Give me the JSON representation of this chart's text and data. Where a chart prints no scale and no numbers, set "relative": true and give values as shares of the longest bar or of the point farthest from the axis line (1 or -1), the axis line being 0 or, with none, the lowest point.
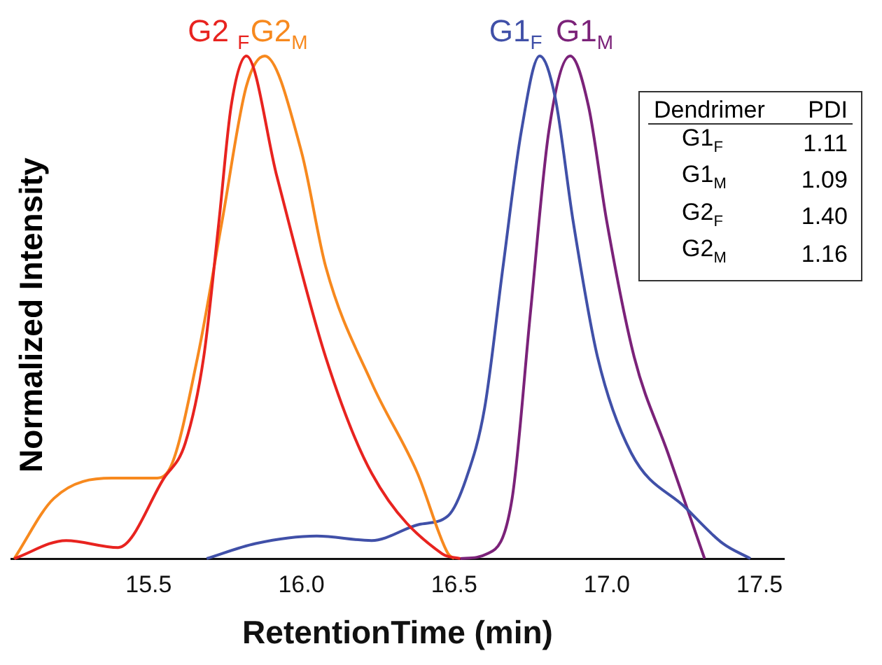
{
  "chart_data": {
    "type": "line",
    "relative": true,
    "xlabel": "RetentionTime (min)",
    "ylabel": "Normalized Intensity",
    "xlim": [
      15.05,
      17.58
    ],
    "xticks": [
      {
        "value": 15.5,
        "label": "15.5"
      },
      {
        "value": 16,
        "label": "16.0"
      },
      {
        "value": 16.5,
        "label": "16.5"
      },
      {
        "value": 17,
        "label": "17.0"
      },
      {
        "value": 17.5,
        "label": "17.5"
      }
    ],
    "grid": false,
    "legend": false,
    "tick_labels": "x",
    "marker": "none",
    "line_style": "solid",
    "series": [
      {
        "name": "G2 $_{F}$",
        "color": "#e8231f",
        "x": [
          15.06,
          15.23,
          15.4,
          15.55,
          15.62,
          15.68,
          15.73,
          15.77,
          15.82,
          15.92,
          16.08,
          16.23,
          16.46,
          16.52
        ],
        "values": [
          0,
          0.036,
          0.022,
          0.16,
          0.23,
          0.4,
          0.67,
          0.9,
          1,
          0.76,
          0.4,
          0.17,
          0.01,
          0
        ]
      },
      {
        "name": "G2$_{M}$",
        "color": "#f7891e",
        "x": [
          15.06,
          15.19,
          15.38,
          15.52,
          15.57,
          15.66,
          15.74,
          15.82,
          15.88,
          16.0,
          16.08,
          16.23,
          16.38,
          16.48,
          16.5
        ],
        "values": [
          0,
          0.12,
          0.16,
          0.16,
          0.18,
          0.4,
          0.67,
          0.94,
          1,
          0.81,
          0.58,
          0.35,
          0.17,
          0.01,
          0
        ]
      },
      {
        "name": "G1$_{F}$",
        "color": "#4050a8",
        "x": [
          15.69,
          15.85,
          16.05,
          16.23,
          16.385,
          16.48,
          16.54,
          16.6,
          16.66,
          16.72,
          16.78,
          16.83,
          16.89,
          16.97,
          17.08,
          17.26,
          17.38,
          17.47
        ],
        "values": [
          0,
          0.03,
          0.045,
          0.036,
          0.068,
          0.085,
          0.16,
          0.3,
          0.58,
          0.85,
          1,
          0.92,
          0.67,
          0.4,
          0.21,
          0.1,
          0.03,
          0
        ]
      },
      {
        "name": "G1$_{M}$",
        "color": "#7b2279",
        "x": [
          16.52,
          16.61,
          16.69,
          16.75,
          16.81,
          16.88,
          16.94,
          17.0,
          17.09,
          17.2,
          17.32
        ],
        "values": [
          0,
          0.01,
          0.12,
          0.49,
          0.85,
          1,
          0.9,
          0.67,
          0.4,
          0.21,
          0
        ]
      }
    ],
    "annotations": [
      "Dendrimer",
      "PDI",
      "G1$_{F}$",
      "1.11",
      "G1$_{M}$",
      "1.09",
      "G2$_{F}$",
      "1.40",
      "G2$_{M}$",
      "1.16"
    ]
  }
}
